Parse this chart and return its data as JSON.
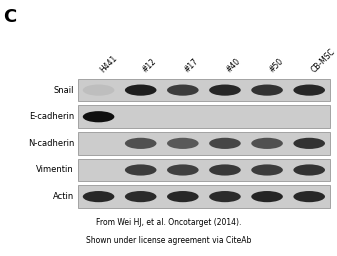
{
  "panel_label": "C",
  "column_labels": [
    "H441",
    "#12",
    "#17",
    "#40",
    "#50",
    "CB-MSC"
  ],
  "row_labels": [
    "Snail",
    "E-cadherin",
    "N-cadherin",
    "Vimentin",
    "Actin"
  ],
  "citation_line1": "From Wei HJ, et al. Oncotarget (2014).",
  "citation_line2": "Shown under license agreement via CiteAb",
  "figure_bg": "#ffffff",
  "col_label_rotation": 45,
  "snail_bands": [
    0.05,
    0.85,
    0.7,
    0.8,
    0.75,
    0.8
  ],
  "ecad_bands": [
    0.92,
    0.02,
    0.02,
    0.02,
    0.02,
    0.02
  ],
  "ncad_bands": [
    0.02,
    0.6,
    0.55,
    0.65,
    0.6,
    0.75
  ],
  "vim_bands": [
    0.02,
    0.7,
    0.68,
    0.72,
    0.7,
    0.75
  ],
  "actin_bands": [
    0.8,
    0.78,
    0.8,
    0.78,
    0.82,
    0.8
  ]
}
